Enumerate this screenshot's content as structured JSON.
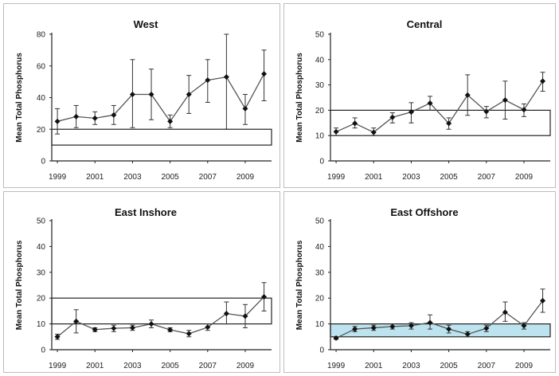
{
  "chart_data": [
    {
      "type": "line",
      "title": "West",
      "ylabel": "Mean Total Phosphorus",
      "xlabel": "",
      "ylim": [
        0,
        80
      ],
      "yticks": [
        0,
        20,
        40,
        60,
        80
      ],
      "xlim": [
        1998.7,
        2010.4
      ],
      "xticks": [
        1999,
        2001,
        2003,
        2005,
        2007,
        2009
      ],
      "grid": false,
      "target_band": {
        "low": 10,
        "high": 20,
        "fill": "#ffffff"
      },
      "series": [
        {
          "x": [
            1999,
            2000,
            2001,
            2002,
            2003,
            2004,
            2005,
            2006,
            2007,
            2008,
            2009,
            2010
          ],
          "y": [
            25,
            28,
            27,
            29,
            42,
            42,
            25,
            42,
            51,
            53,
            33,
            55
          ],
          "err_low": [
            17,
            21,
            23,
            23,
            21,
            26,
            21,
            30,
            37,
            20,
            23,
            38
          ],
          "err_high": [
            33,
            35,
            31,
            35,
            64,
            58,
            29,
            54,
            64,
            80,
            42,
            70
          ]
        }
      ]
    },
    {
      "type": "line",
      "title": "Central",
      "ylabel": "Mean Total Phosphorus",
      "xlabel": "",
      "ylim": [
        0,
        50
      ],
      "yticks": [
        0,
        10,
        20,
        30,
        40,
        50
      ],
      "xlim": [
        1998.7,
        2010.4
      ],
      "xticks": [
        1999,
        2001,
        2003,
        2005,
        2007,
        2009
      ],
      "grid": false,
      "target_band": {
        "low": 10,
        "high": 20,
        "fill": "#ffffff"
      },
      "series": [
        {
          "x": [
            1999,
            2000,
            2001,
            2002,
            2003,
            2004,
            2005,
            2006,
            2007,
            2008,
            2009,
            2010
          ],
          "y": [
            11.5,
            14.8,
            11.3,
            17.2,
            19.3,
            22.8,
            14.8,
            26,
            19.5,
            24,
            20.2,
            31.5
          ],
          "err_low": [
            10,
            13,
            10,
            15,
            15,
            20,
            12.5,
            18,
            17,
            16.5,
            17.5,
            27.5
          ],
          "err_high": [
            13,
            17,
            13,
            19,
            23,
            25.5,
            17,
            34,
            21.5,
            31.5,
            22.5,
            35
          ]
        }
      ]
    },
    {
      "type": "line",
      "title": "East Inshore",
      "ylabel": "Mean Total Phosphorus",
      "xlabel": "",
      "ylim": [
        0,
        50
      ],
      "yticks": [
        0,
        10,
        20,
        30,
        40,
        50
      ],
      "xlim": [
        1998.7,
        2010.4
      ],
      "xticks": [
        1999,
        2001,
        2003,
        2005,
        2007,
        2009
      ],
      "grid": false,
      "target_band": {
        "low": 10,
        "high": 20,
        "fill": "#ffffff"
      },
      "series": [
        {
          "x": [
            1999,
            2000,
            2001,
            2002,
            2003,
            2004,
            2005,
            2006,
            2007,
            2008,
            2009,
            2010
          ],
          "y": [
            5,
            11,
            7.8,
            8.3,
            8.5,
            10,
            7.7,
            6.2,
            8.7,
            14,
            13,
            20.5
          ],
          "err_low": [
            4,
            6.5,
            7,
            7,
            7.5,
            8.5,
            7,
            5,
            7.5,
            10,
            8.5,
            15
          ],
          "err_high": [
            6,
            15.5,
            8.5,
            9.5,
            9.5,
            11.5,
            8.5,
            7.5,
            10,
            18.5,
            17.5,
            26
          ]
        }
      ]
    },
    {
      "type": "line",
      "title": "East Offshore",
      "ylabel": "Mean Total Phosphorus",
      "xlabel": "",
      "ylim": [
        0,
        50
      ],
      "yticks": [
        0,
        10,
        20,
        30,
        40,
        50
      ],
      "xlim": [
        1998.7,
        2010.4
      ],
      "xticks": [
        1999,
        2001,
        2003,
        2005,
        2007,
        2009
      ],
      "grid": false,
      "target_band": {
        "low": 5,
        "high": 10,
        "fill": "#bde3ee"
      },
      "series": [
        {
          "x": [
            1999,
            2000,
            2001,
            2002,
            2003,
            2004,
            2005,
            2006,
            2007,
            2008,
            2009,
            2010
          ],
          "y": [
            4.5,
            8,
            8.5,
            9,
            9.3,
            10.5,
            8,
            6,
            8.3,
            14.5,
            9.3,
            19
          ],
          "err_low": [
            4,
            7,
            7.5,
            8,
            8,
            8,
            6.5,
            5,
            7,
            11,
            8,
            14.5
          ],
          "err_high": [
            5,
            9,
            9.5,
            10,
            10.5,
            13.5,
            9.5,
            7,
            9.5,
            18.5,
            10.5,
            23.5
          ]
        }
      ]
    }
  ]
}
